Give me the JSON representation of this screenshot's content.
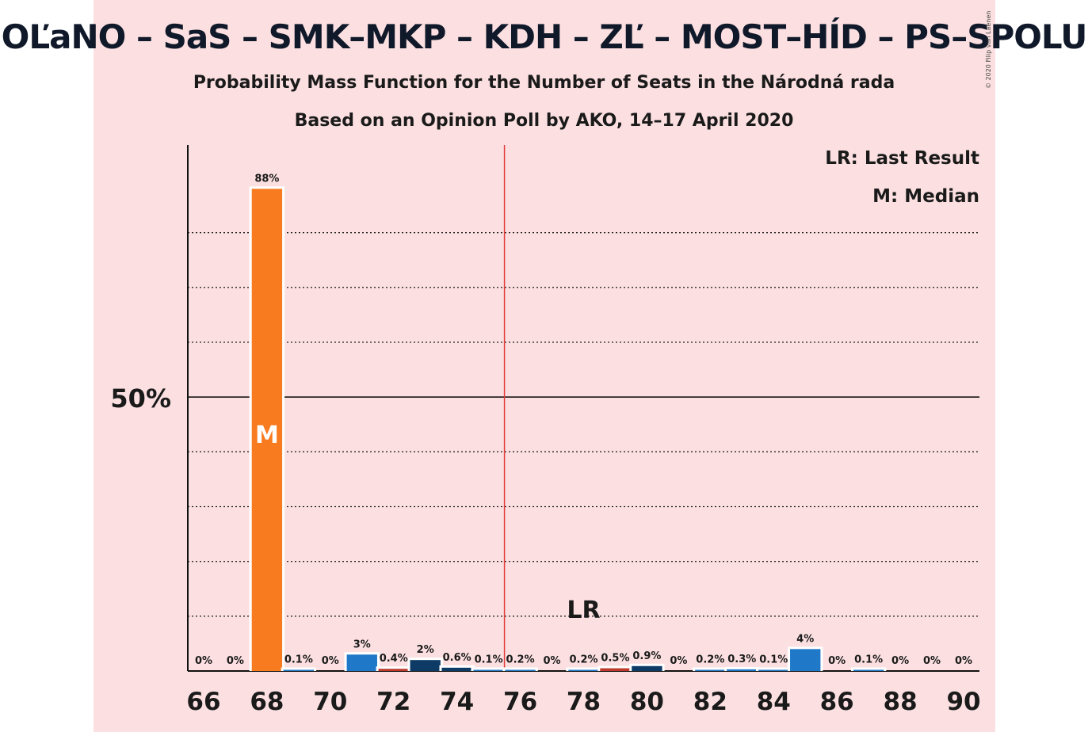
{
  "title": "OĽaNO – SaS – SMK–MKP – KDH – ZĽ – MOST–HÍD – PS–SPOLU",
  "subtitle1": "Probability Mass Function for the Number of Seats in the Národná rada",
  "subtitle2": "Based on an Opinion Poll by AKO, 14–17 April 2020",
  "copyright": "© 2020 Filip van Laenen",
  "legend": {
    "lr": "LR: Last Result",
    "median": "M: Median"
  },
  "colors": {
    "background_band": "#fce0e1",
    "median_bar": "#f97b20",
    "bar_blue": "#1f78c8",
    "bar_dark": "#0e3b66",
    "bar_red": "#c0392b",
    "majority_line": "#e23a3a"
  },
  "chart_data": {
    "type": "bar",
    "x": [
      66,
      67,
      68,
      69,
      70,
      71,
      72,
      73,
      74,
      75,
      76,
      77,
      78,
      79,
      80,
      81,
      82,
      83,
      84,
      85,
      86,
      87,
      88,
      89,
      90
    ],
    "values": [
      0,
      0,
      88,
      0.1,
      0,
      3,
      0.4,
      2,
      0.6,
      0.1,
      0.2,
      0,
      0.2,
      0.5,
      0.9,
      0,
      0.2,
      0.3,
      0.1,
      4,
      0,
      0.1,
      0,
      0,
      0
    ],
    "data_labels": [
      "0%",
      "0%",
      "88%",
      "0.1%",
      "0%",
      "3%",
      "0.4%",
      "2%",
      "0.6%",
      "0.1%",
      "0.2%",
      "0%",
      "0.2%",
      "0.5%",
      "0.9%",
      "0%",
      "0.2%",
      "0.3%",
      "0.1%",
      "4%",
      "0%",
      "0.1%",
      "0%",
      "0%",
      "0%"
    ],
    "bar_colors": [
      "#1f78c8",
      "#1f78c8",
      "#f97b20",
      "#1f78c8",
      "#1f78c8",
      "#1f78c8",
      "#c0392b",
      "#0e3b66",
      "#0e3b66",
      "#1f78c8",
      "#1f78c8",
      "#1f78c8",
      "#1f78c8",
      "#c0392b",
      "#0e3b66",
      "#1f78c8",
      "#1f78c8",
      "#1f78c8",
      "#1f78c8",
      "#1f78c8",
      "#1f78c8",
      "#1f78c8",
      "#1f78c8",
      "#1f78c8",
      "#1f78c8"
    ],
    "x_tick_labels": [
      "66",
      "68",
      "70",
      "72",
      "74",
      "76",
      "78",
      "80",
      "82",
      "84",
      "86",
      "88",
      "90"
    ],
    "y_tick_label": "50%",
    "y_tick_value": 50,
    "ylim": [
      0,
      96
    ],
    "gridlines": [
      10,
      20,
      30,
      40,
      60,
      70,
      80
    ],
    "majority_line": 75.5,
    "median": 68,
    "median_label": "M",
    "last_result": 78,
    "last_result_label": "LR"
  }
}
